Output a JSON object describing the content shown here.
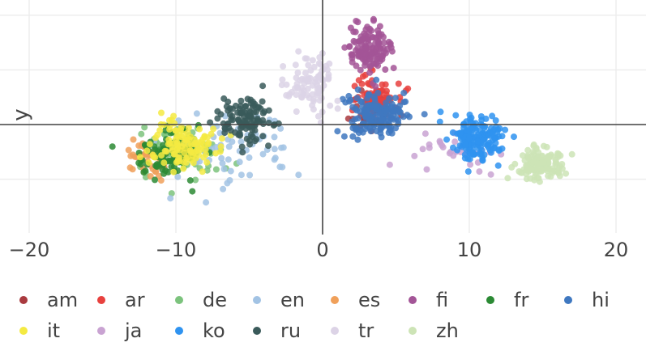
{
  "chart_data": {
    "type": "scatter",
    "title": "",
    "xlabel": "",
    "ylabel": "y",
    "xlim": [
      -22,
      22
    ],
    "ylim": [
      -12,
      4
    ],
    "grid": true,
    "legend_position": "bottom",
    "x_ticks": [
      -20,
      -10,
      0,
      10,
      20
    ],
    "x_tick_labels": [
      "−20",
      "−10",
      "0",
      "10",
      "20"
    ],
    "y_grid_values": [
      -8,
      -6,
      -4,
      -2,
      0,
      2,
      4
    ],
    "series": [
      {
        "name": "am",
        "color": "#a93a3f",
        "clusters": [
          {
            "cx": 3.5,
            "cy": 0.6,
            "sx": 1.2,
            "sy": 0.6,
            "n": 30
          }
        ]
      },
      {
        "name": "ar",
        "color": "#e8413e",
        "clusters": [
          {
            "cx": 3.6,
            "cy": 1.1,
            "sx": 1.6,
            "sy": 0.6,
            "n": 80
          }
        ]
      },
      {
        "name": "de",
        "color": "#7cc37d",
        "clusters": [
          {
            "cx": -9.5,
            "cy": -1.0,
            "sx": 2.4,
            "sy": 0.7,
            "n": 70
          }
        ]
      },
      {
        "name": "en",
        "color": "#a2c3e4",
        "clusters": [
          {
            "cx": -6.0,
            "cy": -0.9,
            "sx": 4.2,
            "sy": 0.9,
            "n": 70
          }
        ]
      },
      {
        "name": "es",
        "color": "#f0a05a",
        "clusters": [
          {
            "cx": -12.0,
            "cy": -1.3,
            "sx": 1.4,
            "sy": 0.5,
            "n": 50
          }
        ]
      },
      {
        "name": "fi",
        "color": "#a35597",
        "clusters": [
          {
            "cx": 3.1,
            "cy": 2.8,
            "sx": 1.3,
            "sy": 0.6,
            "n": 130
          }
        ]
      },
      {
        "name": "fr",
        "color": "#2b8a34",
        "clusters": [
          {
            "cx": -10.5,
            "cy": -1.1,
            "sx": 2.0,
            "sy": 0.6,
            "n": 100
          }
        ]
      },
      {
        "name": "hi",
        "color": "#3f78c0",
        "clusters": [
          {
            "cx": 3.6,
            "cy": 0.4,
            "sx": 1.9,
            "sy": 0.6,
            "n": 160
          }
        ]
      },
      {
        "name": "it",
        "color": "#f4ea42",
        "clusters": [
          {
            "cx": -9.5,
            "cy": -0.8,
            "sx": 2.0,
            "sy": 0.7,
            "n": 110
          }
        ]
      },
      {
        "name": "ja",
        "color": "#c9a3d2",
        "clusters": [
          {
            "cx": 9.0,
            "cy": -1.0,
            "sx": 3.0,
            "sy": 0.6,
            "n": 30
          }
        ]
      },
      {
        "name": "ko",
        "color": "#2f93f0",
        "clusters": [
          {
            "cx": 10.5,
            "cy": -0.5,
            "sx": 1.6,
            "sy": 0.6,
            "n": 160
          }
        ]
      },
      {
        "name": "ru",
        "color": "#3a5a5a",
        "clusters": [
          {
            "cx": -5.0,
            "cy": 0.1,
            "sx": 1.8,
            "sy": 0.6,
            "n": 110
          }
        ]
      },
      {
        "name": "tr",
        "color": "#dcd3e6",
        "clusters": [
          {
            "cx": -0.8,
            "cy": 1.5,
            "sx": 1.6,
            "sy": 0.7,
            "n": 90
          }
        ]
      },
      {
        "name": "zh",
        "color": "#cde4b6",
        "clusters": [
          {
            "cx": 14.8,
            "cy": -1.4,
            "sx": 1.5,
            "sy": 0.4,
            "n": 130
          }
        ]
      }
    ]
  }
}
